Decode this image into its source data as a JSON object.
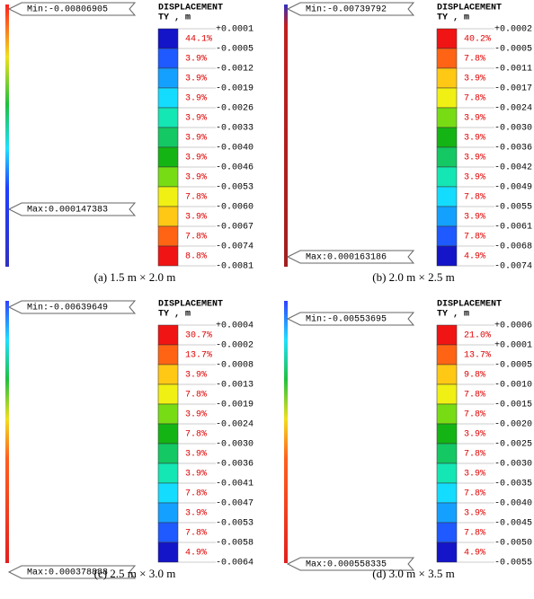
{
  "panels": [
    {
      "caption": "(a) 1.5 m × 2.0 m",
      "min_label": "Min:-0.00806905",
      "max_label": "Max:0.000147383",
      "legend_title": "DISPLACEMENT",
      "legend_unit": "TY , m",
      "ticks": [
        "+0.0001",
        "-0.0005",
        "-0.0012",
        "-0.0019",
        "-0.0026",
        "-0.0033",
        "-0.0040",
        "-0.0046",
        "-0.0053",
        "-0.0060",
        "-0.0067",
        "-0.0074",
        "-0.0081"
      ],
      "percents": [
        "44.1%",
        "3.9%",
        "3.9%",
        "3.9%",
        "3.9%",
        "3.9%",
        "3.9%",
        "3.9%",
        "7.8%",
        "3.9%",
        "7.8%",
        "8.8%"
      ]
    },
    {
      "caption": "(b) 2.0 m × 2.5 m",
      "min_label": "Min:-0.00739792",
      "max_label": "Max:0.000163186",
      "legend_title": "DISPLACEMENT",
      "legend_unit": "TY , m",
      "ticks": [
        "+0.0002",
        "-0.0005",
        "-0.0011",
        "-0.0017",
        "-0.0024",
        "-0.0030",
        "-0.0036",
        "-0.0042",
        "-0.0049",
        "-0.0055",
        "-0.0061",
        "-0.0068",
        "-0.0074"
      ],
      "percents": [
        "40.2%",
        "7.8%",
        "3.9%",
        "7.8%",
        "3.9%",
        "3.9%",
        "3.9%",
        "3.9%",
        "7.8%",
        "3.9%",
        "7.8%",
        "4.9%"
      ]
    },
    {
      "caption": "(c) 2.5 m × 3.0 m",
      "min_label": "Min:-0.00639649",
      "max_label": "Max:0.000378888",
      "legend_title": "DISPLACEMENT",
      "legend_unit": "TY , m",
      "ticks": [
        "+0.0004",
        "-0.0002",
        "-0.0008",
        "-0.0013",
        "-0.0019",
        "-0.0024",
        "-0.0030",
        "-0.0036",
        "-0.0041",
        "-0.0047",
        "-0.0053",
        "-0.0058",
        "-0.0064"
      ],
      "percents": [
        "30.7%",
        "13.7%",
        "3.9%",
        "7.8%",
        "3.9%",
        "7.8%",
        "3.9%",
        "3.9%",
        "7.8%",
        "3.9%",
        "7.8%",
        "4.9%"
      ]
    },
    {
      "caption": "(d) 3.0 m × 3.5 m",
      "min_label": "Min:-0.00553695",
      "max_label": "Max:0.000558335",
      "legend_title": "DISPLACEMENT",
      "legend_unit": "TY , m",
      "ticks": [
        "+0.0006",
        "+0.0001",
        "-0.0005",
        "-0.0010",
        "-0.0015",
        "-0.0020",
        "-0.0025",
        "-0.0030",
        "-0.0035",
        "-0.0040",
        "-0.0045",
        "-0.0050",
        "-0.0055"
      ],
      "percents": [
        "21.0%",
        "13.7%",
        "9.8%",
        "7.8%",
        "7.8%",
        "3.9%",
        "7.8%",
        "3.9%",
        "7.8%",
        "3.9%",
        "7.8%",
        "4.9%"
      ]
    }
  ]
}
